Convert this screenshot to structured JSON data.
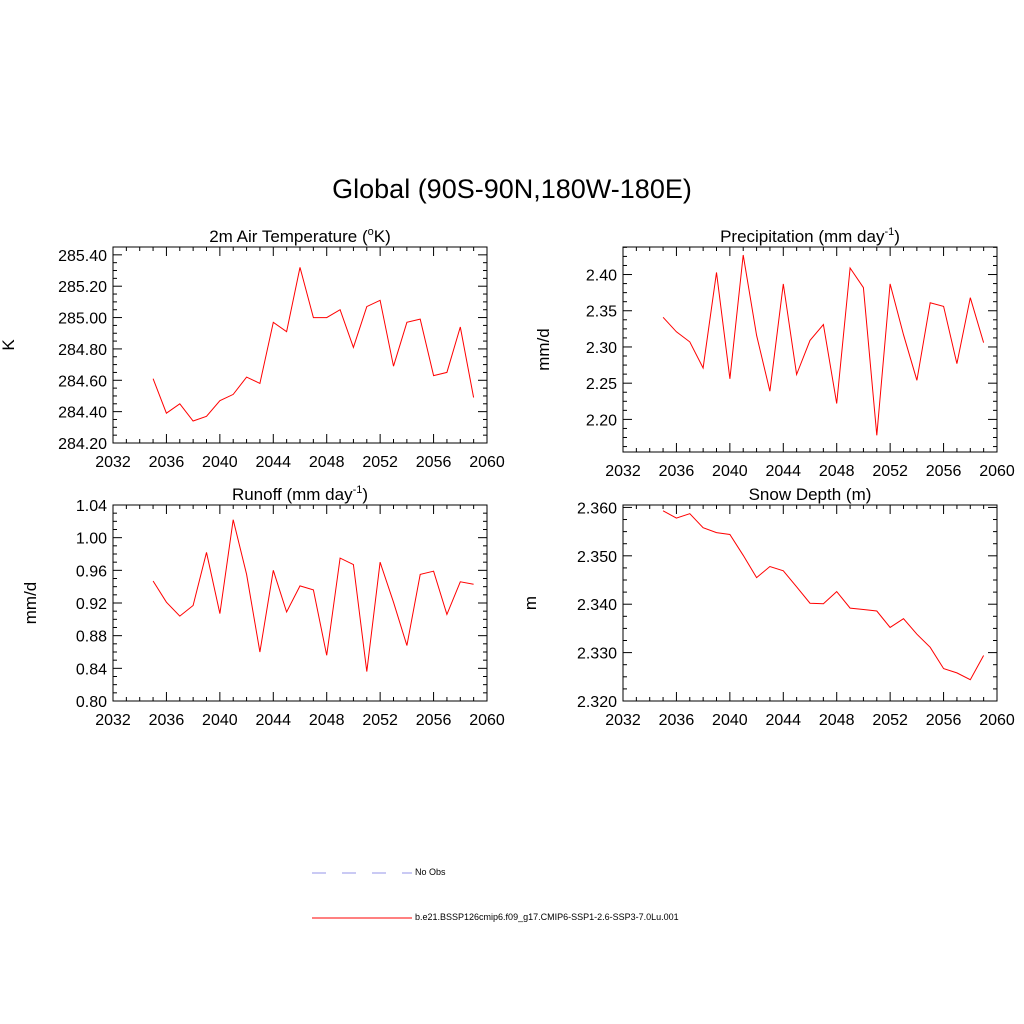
{
  "title": "Global (90S-90N,180W-180E)",
  "chart_data": [
    {
      "type": "line",
      "title": "2m Air Temperature (°K)",
      "title_parts": {
        "pre": "2m Air Temperature (",
        "sup": "o",
        "post": "K)"
      },
      "ylabel": "K",
      "xlim": [
        2032,
        2060
      ],
      "xticks": [
        "2032",
        "2036",
        "2040",
        "2044",
        "2048",
        "2052",
        "2056",
        "2060"
      ],
      "ylim": [
        284.2,
        285.45
      ],
      "yticks": [
        "284.20",
        "284.40",
        "284.60",
        "284.80",
        "285.00",
        "285.20",
        "285.40"
      ],
      "x": [
        2035,
        2036,
        2037,
        2038,
        2039,
        2040,
        2041,
        2042,
        2043,
        2044,
        2045,
        2046,
        2047,
        2048,
        2049,
        2050,
        2051,
        2052,
        2053,
        2054,
        2055,
        2056,
        2057,
        2058,
        2059
      ],
      "series": [
        {
          "name": "b.e21.BSSP126cmip6.f09_g17.CMIP6-SSP1-2.6-SSP3-7.0Lu.001",
          "color": "#ff0000",
          "values": [
            284.61,
            284.39,
            284.45,
            284.34,
            284.37,
            284.47,
            284.51,
            284.62,
            284.58,
            284.97,
            284.91,
            285.32,
            285.0,
            285.0,
            285.05,
            284.81,
            285.07,
            285.11,
            284.69,
            284.97,
            284.99,
            284.63,
            284.65,
            284.94,
            284.49
          ]
        }
      ]
    },
    {
      "type": "line",
      "title": "Precipitation (mm day-1)",
      "title_parts": {
        "pre": "Precipitation (mm day",
        "sup": "-1",
        "post": ")"
      },
      "ylabel": "mm/d",
      "xlim": [
        2032,
        2060
      ],
      "xticks": [
        "2032",
        "2036",
        "2040",
        "2044",
        "2048",
        "2052",
        "2056",
        "2060"
      ],
      "ylim": [
        2.155,
        2.438
      ],
      "yticks": [
        "2.20",
        "2.25",
        "2.30",
        "2.35",
        "2.40"
      ],
      "x": [
        2035,
        2036,
        2037,
        2038,
        2039,
        2040,
        2041,
        2042,
        2043,
        2044,
        2045,
        2046,
        2047,
        2048,
        2049,
        2050,
        2051,
        2052,
        2053,
        2054,
        2055,
        2056,
        2057,
        2058,
        2059
      ],
      "series": [
        {
          "name": "b.e21.BSSP126cmip6.f09_g17.CMIP6-SSP1-2.6-SSP3-7.0Lu.001",
          "color": "#ff0000",
          "values": [
            2.341,
            2.321,
            2.307,
            2.271,
            2.403,
            2.256,
            2.427,
            2.316,
            2.239,
            2.387,
            2.262,
            2.309,
            2.331,
            2.222,
            2.409,
            2.382,
            2.178,
            2.387,
            2.317,
            2.254,
            2.361,
            2.356,
            2.277,
            2.368,
            2.306
          ]
        }
      ]
    },
    {
      "type": "line",
      "title": "Runoff (mm day-1)",
      "title_parts": {
        "pre": "Runoff (mm day",
        "sup": "-1",
        "post": ")"
      },
      "ylabel": "mm/d",
      "xlim": [
        2032,
        2060
      ],
      "xticks": [
        "2032",
        "2036",
        "2040",
        "2044",
        "2048",
        "2052",
        "2056",
        "2060"
      ],
      "ylim": [
        0.8,
        1.04
      ],
      "yticks": [
        "0.80",
        "0.84",
        "0.88",
        "0.92",
        "0.96",
        "1.00",
        "1.04"
      ],
      "x": [
        2035,
        2036,
        2037,
        2038,
        2039,
        2040,
        2041,
        2042,
        2043,
        2044,
        2045,
        2046,
        2047,
        2048,
        2049,
        2050,
        2051,
        2052,
        2053,
        2054,
        2055,
        2056,
        2057,
        2058,
        2059
      ],
      "series": [
        {
          "name": "b.e21.BSSP126cmip6.f09_g17.CMIP6-SSP1-2.6-SSP3-7.0Lu.001",
          "color": "#ff0000",
          "values": [
            0.947,
            0.921,
            0.904,
            0.917,
            0.982,
            0.907,
            1.022,
            0.955,
            0.86,
            0.96,
            0.909,
            0.941,
            0.936,
            0.856,
            0.975,
            0.967,
            0.836,
            0.97,
            0.921,
            0.868,
            0.955,
            0.959,
            0.906,
            0.946,
            0.943
          ]
        }
      ]
    },
    {
      "type": "line",
      "title": "Snow Depth (m)",
      "title_parts": {
        "pre": "Snow Depth (m)",
        "sup": "",
        "post": ""
      },
      "ylabel": "m",
      "xlim": [
        2032,
        2060
      ],
      "xticks": [
        "2032",
        "2036",
        "2040",
        "2044",
        "2048",
        "2052",
        "2056",
        "2060"
      ],
      "ylim": [
        2.32,
        2.3605
      ],
      "yticks": [
        "2.320",
        "2.330",
        "2.340",
        "2.350",
        "2.360"
      ],
      "x": [
        2035,
        2036,
        2037,
        2038,
        2039,
        2040,
        2041,
        2042,
        2043,
        2044,
        2045,
        2046,
        2047,
        2048,
        2049,
        2050,
        2051,
        2052,
        2053,
        2054,
        2055,
        2056,
        2057,
        2058,
        2059
      ],
      "series": [
        {
          "name": "b.e21.BSSP126cmip6.f09_g17.CMIP6-SSP1-2.6-SSP3-7.0Lu.001",
          "color": "#ff0000",
          "values": [
            2.3593,
            2.3578,
            2.3587,
            2.3558,
            2.3548,
            2.3544,
            2.3501,
            2.3455,
            2.3478,
            2.3469,
            2.3436,
            2.3402,
            2.3401,
            2.3426,
            2.3392,
            2.3389,
            2.3386,
            2.3352,
            2.337,
            2.3338,
            2.3311,
            2.3267,
            2.3258,
            2.3244,
            2.3294
          ]
        }
      ]
    }
  ],
  "legend": [
    {
      "label": "No Obs",
      "color": "#aaaaee",
      "style": "dashed"
    },
    {
      "label": "b.e21.BSSP126cmip6.f09_g17.CMIP6-SSP1-2.6-SSP3-7.0Lu.001",
      "color": "#ff0000",
      "style": "solid"
    }
  ]
}
